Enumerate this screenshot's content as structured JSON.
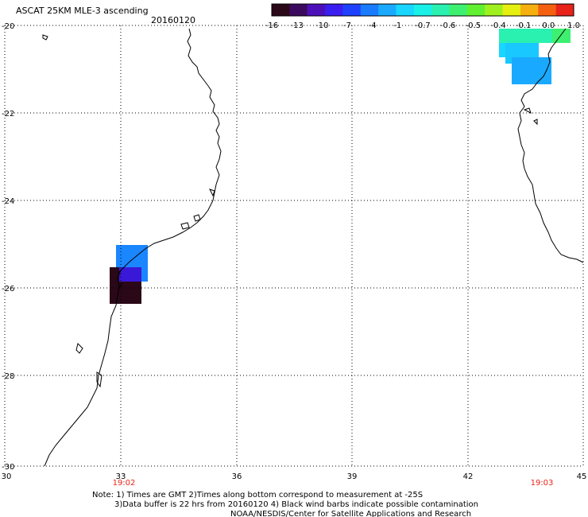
{
  "title": "ASCAT 25KM MLE-3 ascending",
  "date": "20160120",
  "colorbar": {
    "colors": [
      "#2a0818",
      "#3b0a5e",
      "#4b10b8",
      "#3a1ef0",
      "#1e40ff",
      "#1a7bff",
      "#19aaff",
      "#18d6ff",
      "#19f0e8",
      "#2af0b0",
      "#3ef070",
      "#60f030",
      "#a0f020",
      "#e6f010",
      "#f5b010",
      "#f56010",
      "#e8231a"
    ],
    "labels": [
      "-16",
      "-13",
      "-10",
      "-7",
      "-4",
      "-1",
      "-0.7",
      "-0.6",
      "-0.5",
      "-0.4",
      "-0.1",
      "0.0",
      "1.0"
    ]
  },
  "axes": {
    "lon_labels": [
      "30",
      "33",
      "36",
      "39",
      "42",
      "45"
    ],
    "lat_labels": [
      "-20",
      "-22",
      "-24",
      "-26",
      "-28",
      "-30"
    ],
    "lon_range": [
      30,
      45
    ],
    "lat_range": [
      -30,
      -20
    ]
  },
  "times": {
    "left": "19:02",
    "right": "19:03",
    "color": "#e8231a"
  },
  "notes": {
    "line1": "Note: 1) Times are GMT 2)Times along bottom correspond to measurement at -25S",
    "line2": "3)Data buffer is 22 hrs from 20160120 4) Black wind barbs indicate possible contamination",
    "line3": "NOAA/NESDIS/Center for Satellite Applications and Research"
  }
}
